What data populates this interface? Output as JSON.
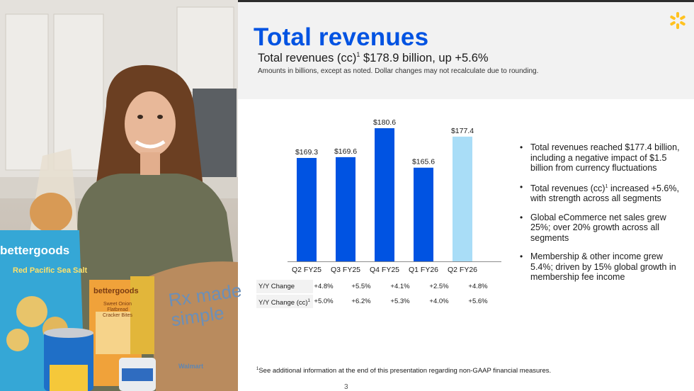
{
  "slide": {
    "title": "Total revenues",
    "subtitle_prefix": "Total revenues (cc)",
    "subtitle_sup": "1",
    "subtitle_value": " $178.9 billion, up +5.6%",
    "note": "Amounts in billions, except as noted.  Dollar changes may not recalculate due to rounding.",
    "footnote_sup": "1",
    "footnote": "See additional information at the end of this presentation regarding non-GAAP financial measures.",
    "page_number": "3",
    "logo_icon": "walmart-spark-icon"
  },
  "photo": {
    "bag_text": "Rx made simple",
    "bag_brand": "Walmart",
    "package1_brand": "bettergoods",
    "package1_sub": "Red Pacific Sea Salt",
    "package2_brand": "bettergoods",
    "package2_sub": "Sweet Onion Flatbread Cracker Bites"
  },
  "chart_data": {
    "type": "bar",
    "categories": [
      "Q2 FY25",
      "Q3 FY25",
      "Q4 FY25",
      "Q1 FY26",
      "Q2 FY26"
    ],
    "values": [
      169.3,
      169.6,
      180.6,
      165.6,
      177.4
    ],
    "data_labels": [
      "$169.3",
      "$169.6",
      "$180.6",
      "$165.6",
      "$177.4"
    ],
    "colors": [
      "#0053e2",
      "#0053e2",
      "#0053e2",
      "#0053e2",
      "#a9ddf7"
    ],
    "baseline": 130,
    "ymax": 180.6
  },
  "change_table": {
    "rows": [
      {
        "label": "Y/Y Change",
        "sup": "",
        "values": [
          "+4.8%",
          "+5.5%",
          "+4.1%",
          "+2.5%",
          "+4.8%"
        ]
      },
      {
        "label": "Y/Y Change (cc)",
        "sup": "1",
        "values": [
          "+5.0%",
          "+6.2%",
          "+5.3%",
          "+4.0%",
          "+5.6%"
        ]
      }
    ]
  },
  "bullets": [
    {
      "text": "Total revenues reached $177.4 billion, including a negative impact of $1.5 billion from currency fluctuations"
    },
    {
      "pre": "Total revenues (cc)",
      "sup": "1",
      "post": " increased +5.6%, with strength across all segments"
    },
    {
      "text": "Global eCommerce net sales grew 25%; over 20% growth across all segments"
    },
    {
      "text": "Membership & other income grew 5.4%; driven by 15% global growth in membership fee income"
    }
  ],
  "colors": {
    "accent": "#0053e2",
    "highlight": "#a9ddf7",
    "spark": "#ffc220",
    "header_bg": "#f2f2f2"
  }
}
